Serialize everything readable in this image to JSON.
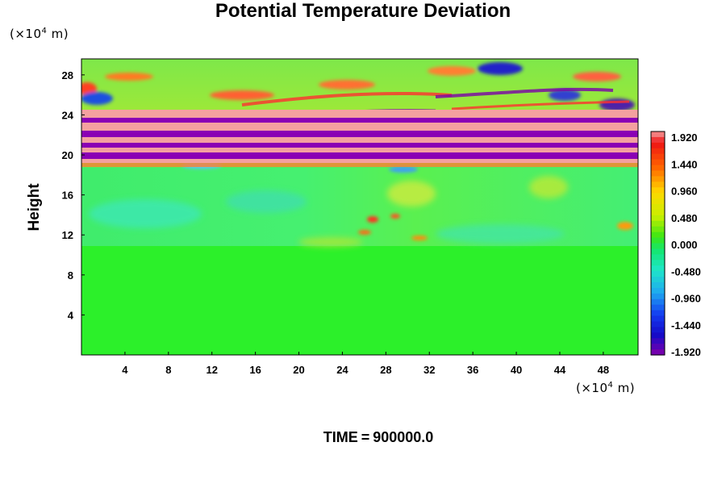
{
  "chart_data": {
    "type": "heatmap",
    "title": "Potential Temperature Deviation",
    "ylabel": "Height",
    "unit_prefix": "(×10",
    "unit_exp": "4",
    "unit_suffix": " m)",
    "x_ticks": [
      4,
      8,
      12,
      16,
      20,
      24,
      28,
      32,
      36,
      40,
      44,
      48
    ],
    "y_ticks": [
      4,
      8,
      12,
      16,
      20,
      24,
      28
    ],
    "xlim": [
      0,
      51.2
    ],
    "ylim": [
      0,
      29.6
    ],
    "colorbar": {
      "ticks": [
        "1.920",
        "1.440",
        "0.960",
        "0.480",
        "0.000",
        "-0.480",
        "-0.960",
        "-1.440",
        "-1.920"
      ],
      "range": [
        -1.92,
        1.92
      ]
    },
    "time_label": "TIME",
    "time_eq": "=",
    "time_value": "900000.0"
  }
}
